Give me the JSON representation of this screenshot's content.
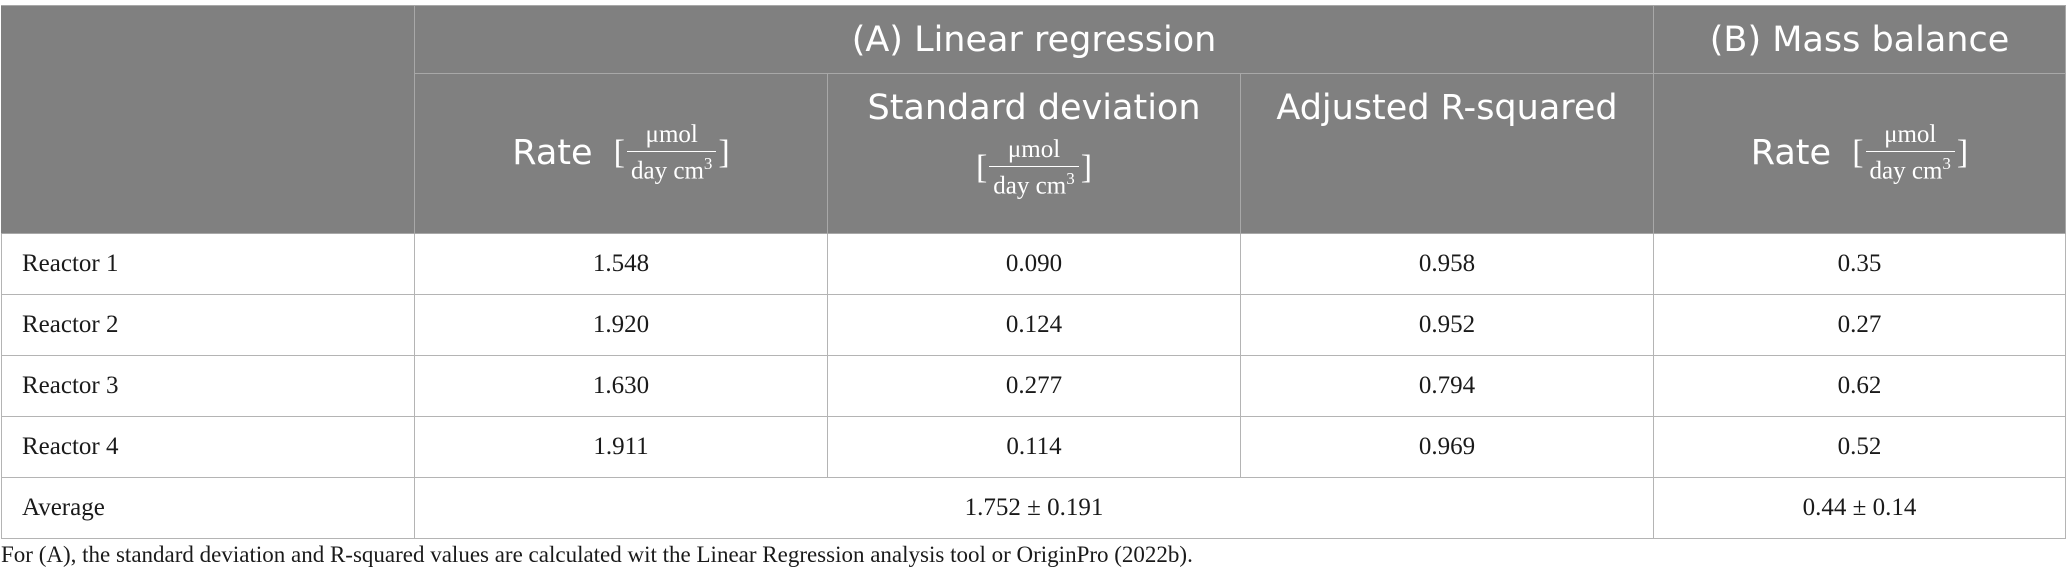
{
  "header": {
    "group_a": "(A) Linear regression",
    "group_b": "(B) Mass balance",
    "columns": {
      "rate": "Rate",
      "std_dev": "Standard deviation",
      "adj_r2": "Adjusted R-squared",
      "rate_b": "Rate"
    },
    "unit": {
      "bracket_open": "[",
      "bracket_close": "]",
      "numerator": "μmol",
      "denominator": "day cm",
      "exponent": "3"
    }
  },
  "rows": [
    {
      "label": "Reactor 1",
      "rate": "1.548",
      "std_dev": "0.090",
      "adj_r2": "0.958",
      "rate_b": "0.35"
    },
    {
      "label": "Reactor 2",
      "rate": "1.920",
      "std_dev": "0.124",
      "adj_r2": "0.952",
      "rate_b": "0.27"
    },
    {
      "label": "Reactor 3",
      "rate": "1.630",
      "std_dev": "0.277",
      "adj_r2": "0.794",
      "rate_b": "0.62"
    },
    {
      "label": "Reactor 4",
      "rate": "1.911",
      "std_dev": "0.114",
      "adj_r2": "0.969",
      "rate_b": "0.52"
    }
  ],
  "average": {
    "label": "Average",
    "value_a": "1.752 ± 0.191",
    "value_b": "0.44 ± 0.14"
  },
  "footnote": "For (A), the standard deviation and R-squared values are calculated wit the Linear Regression analysis tool or OriginPro (2022b).",
  "colors": {
    "header_bg": "#808080",
    "header_text": "#ffffff",
    "grid": "#b4b4b4",
    "body_text": "#1a1a1a"
  }
}
